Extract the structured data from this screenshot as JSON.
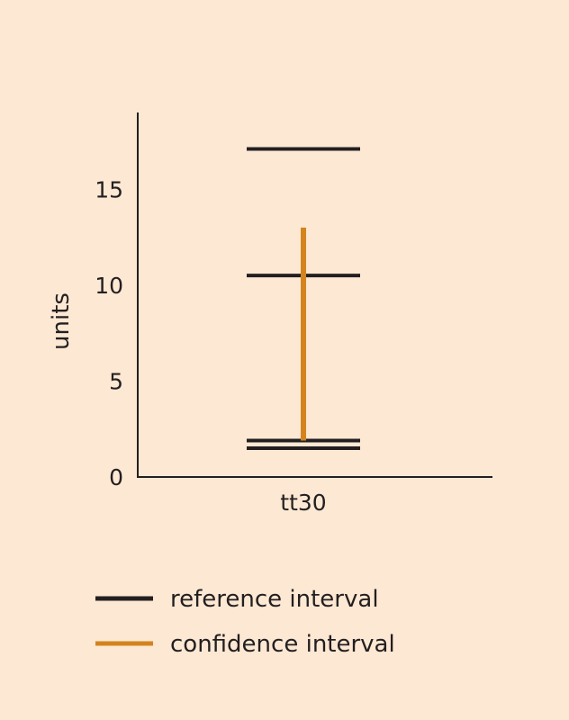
{
  "chart_data": {
    "type": "interval",
    "ylabel": "units",
    "ylim": [
      0,
      19
    ],
    "yticks": [
      0,
      5,
      10,
      15
    ],
    "categories": [
      "tt30"
    ],
    "reference_lines": [
      17.1,
      10.5,
      1.9,
      1.5
    ],
    "confidence_interval": {
      "low": 1.9,
      "high": 13.0
    },
    "colors": {
      "reference": "#231f20",
      "confidence": "#d3841f",
      "background": "#fde8d3"
    },
    "legend": [
      {
        "label": "reference interval",
        "color": "#231f20"
      },
      {
        "label": "confidence interval",
        "color": "#d3841f"
      }
    ]
  }
}
